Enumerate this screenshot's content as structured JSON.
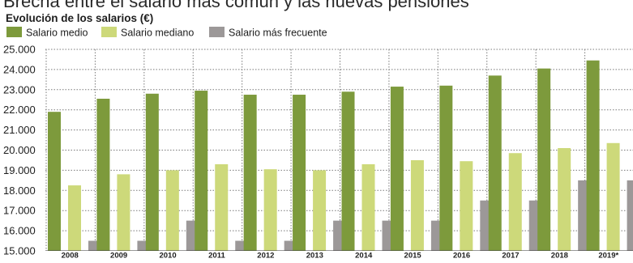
{
  "chart_data": {
    "type": "bar",
    "title": "Brecha entre el salario más común y las nuevas pensiones",
    "subtitle": "Evolución de los salarios (€)",
    "categories": [
      "2008",
      "2009",
      "2010",
      "2011",
      "2012",
      "2013",
      "2014",
      "2015",
      "2016",
      "2017",
      "2018",
      "2019*"
    ],
    "series": [
      {
        "name": "Salario medio",
        "color": "#7d9a3c",
        "values": [
          21900,
          22550,
          22800,
          22950,
          22750,
          22750,
          22900,
          23150,
          23200,
          23700,
          24050,
          24450
        ]
      },
      {
        "name": "Salario mediano",
        "color": "#cdd97a",
        "values": [
          18250,
          18800,
          19000,
          19300,
          19050,
          19000,
          19300,
          19500,
          19450,
          19850,
          20100,
          20350
        ]
      },
      {
        "name": "Salario más frecuente",
        "color": "#9c9898",
        "values": [
          15500,
          15500,
          16500,
          15500,
          15500,
          16500,
          16500,
          16500,
          17500,
          17500,
          18500,
          18500
        ]
      }
    ],
    "y_ticks": [
      "15.000",
      "16.000",
      "17.000",
      "18.000",
      "19.000",
      "20.000",
      "21.000",
      "22.000",
      "23.000",
      "24.000",
      "25.000"
    ],
    "ylim": [
      15000,
      25000
    ],
    "grid": true,
    "legend_position": "top-left"
  }
}
